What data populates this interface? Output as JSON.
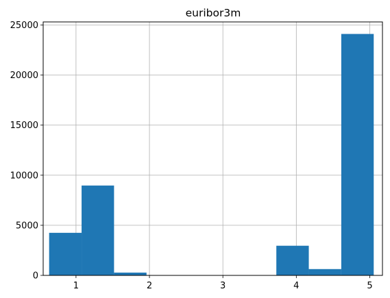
{
  "chart_data": {
    "type": "bar",
    "title": "euribor3m",
    "xlabel": "",
    "ylabel": "",
    "xlim": [
      0.553,
      5.173
    ],
    "ylim": [
      0,
      25300
    ],
    "xticks": [
      1,
      2,
      3,
      4,
      5
    ],
    "xtick_labels": [
      "1",
      "2",
      "3",
      "4",
      "5"
    ],
    "yticks": [
      0,
      5000,
      10000,
      15000,
      20000,
      25000
    ],
    "ytick_labels": [
      "0",
      "5000",
      "10000",
      "15000",
      "20000",
      "25000"
    ],
    "grid": true,
    "bar_color": "#1f77b4",
    "bins": [
      {
        "x0": 0.634,
        "x1": 1.076,
        "count": 4250
      },
      {
        "x0": 1.076,
        "x1": 1.518,
        "count": 8970
      },
      {
        "x0": 1.518,
        "x1": 1.96,
        "count": 280
      },
      {
        "x0": 1.96,
        "x1": 2.402,
        "count": 0
      },
      {
        "x0": 2.402,
        "x1": 2.844,
        "count": 0
      },
      {
        "x0": 2.844,
        "x1": 3.286,
        "count": 0
      },
      {
        "x0": 3.286,
        "x1": 3.728,
        "count": 0
      },
      {
        "x0": 3.728,
        "x1": 4.17,
        "count": 2960
      },
      {
        "x0": 4.17,
        "x1": 4.612,
        "count": 630
      },
      {
        "x0": 4.612,
        "x1": 5.054,
        "count": 24100
      }
    ]
  }
}
